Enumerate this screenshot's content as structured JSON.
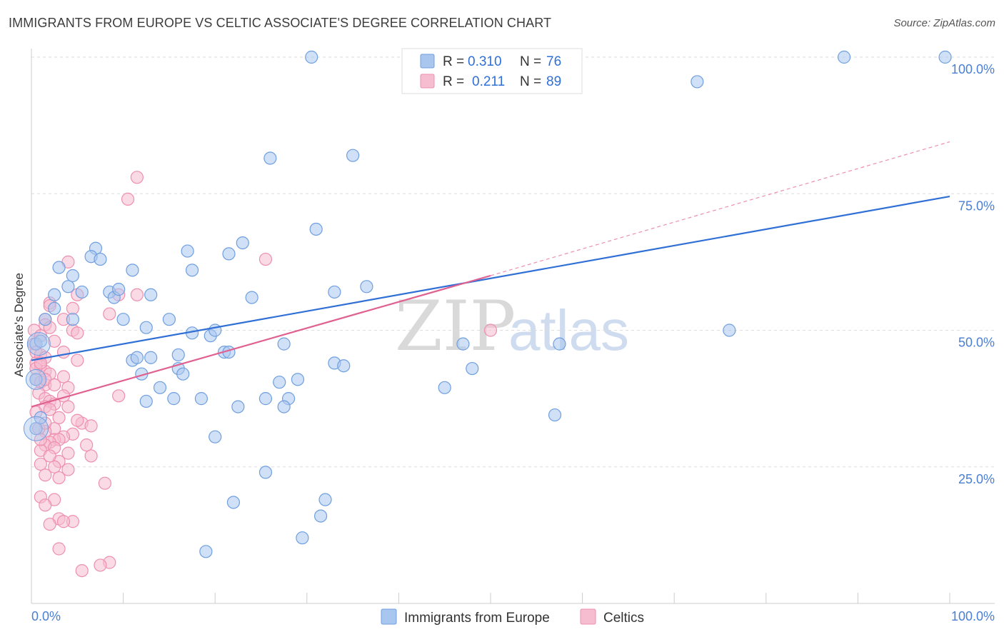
{
  "title": "IMMIGRANTS FROM EUROPE VS CELTIC ASSOCIATE'S DEGREE CORRELATION CHART",
  "source": "Source: ZipAtlas.com",
  "watermark": {
    "zip": "ZIP",
    "atlas": "atlas"
  },
  "colors": {
    "blue_fill": "#a9c6ee",
    "blue_stroke": "#6f9fe0",
    "blue_line": "#2f6fd6",
    "pink_fill": "#f6bcd0",
    "pink_stroke": "#ee8fb0",
    "pink_line": "#e0608f",
    "grid": "#dddddd",
    "axis_text": "#4a7fd4"
  },
  "legend_top": {
    "rows": [
      {
        "series": "blue",
        "r_label": "R =",
        "r_value": "0.310",
        "n_label": "N =",
        "n_value": "76"
      },
      {
        "series": "pink",
        "r_label": "R =",
        "r_value": "0.211",
        "n_label": "N =",
        "n_value": "89"
      }
    ]
  },
  "legend_bottom": [
    "Immigrants from Europe",
    "Celtics"
  ],
  "chart_data": {
    "type": "scatter",
    "title": "IMMIGRANTS FROM EUROPE VS CELTIC ASSOCIATE'S DEGREE CORRELATION CHART",
    "xlabel": "",
    "ylabel": "Associate's Degree",
    "xlim": [
      0,
      100
    ],
    "ylim": [
      0,
      102
    ],
    "x_tick_labels": [
      "0.0%",
      "100.0%"
    ],
    "y_ticks": [
      {
        "value": 25,
        "label": "25.0%"
      },
      {
        "value": 50,
        "label": "50.0%"
      },
      {
        "value": 75,
        "label": "75.0%"
      },
      {
        "value": 100,
        "label": "100.0%"
      }
    ],
    "series": [
      {
        "name": "Immigrants from Europe",
        "color": "blue",
        "R": 0.31,
        "N": 76,
        "trend": {
          "x0": 0,
          "y0": 44.5,
          "x1": 100,
          "y1": 74.5,
          "dashed_to": null
        },
        "points": [
          [
            30.5,
            100
          ],
          [
            88.5,
            100
          ],
          [
            99.5,
            100
          ],
          [
            72.5,
            95.5
          ],
          [
            26,
            81.5
          ],
          [
            35,
            82
          ],
          [
            31,
            68.5
          ],
          [
            23,
            66
          ],
          [
            21.5,
            64
          ],
          [
            17,
            64.5
          ],
          [
            7,
            65
          ],
          [
            6.5,
            63.5
          ],
          [
            7.5,
            63
          ],
          [
            3,
            61.5
          ],
          [
            4.5,
            60
          ],
          [
            11,
            61
          ],
          [
            17.5,
            61
          ],
          [
            36.5,
            58
          ],
          [
            33,
            57
          ],
          [
            4,
            58
          ],
          [
            2.5,
            56.5
          ],
          [
            5.5,
            57
          ],
          [
            8.5,
            57
          ],
          [
            9,
            56
          ],
          [
            9.5,
            57.5
          ],
          [
            13,
            56.5
          ],
          [
            24,
            56
          ],
          [
            2.5,
            54
          ],
          [
            1.5,
            52
          ],
          [
            4.5,
            52
          ],
          [
            10,
            52
          ],
          [
            15,
            52
          ],
          [
            12.5,
            50.5
          ],
          [
            17.5,
            49.5
          ],
          [
            19.5,
            49
          ],
          [
            20,
            50
          ],
          [
            21,
            46
          ],
          [
            21.5,
            46
          ],
          [
            13,
            45
          ],
          [
            16,
            45.5
          ],
          [
            11,
            44.5
          ],
          [
            11.5,
            45
          ],
          [
            12,
            42
          ],
          [
            16,
            43
          ],
          [
            16.5,
            42
          ],
          [
            33,
            44
          ],
          [
            34,
            43.5
          ],
          [
            27.5,
            47.5
          ],
          [
            47,
            47.5
          ],
          [
            57.5,
            47.5
          ],
          [
            76,
            50
          ],
          [
            48,
            43
          ],
          [
            45,
            39.5
          ],
          [
            14,
            39.5
          ],
          [
            12.5,
            37
          ],
          [
            15.5,
            37.5
          ],
          [
            18.5,
            37.5
          ],
          [
            25.5,
            37.5
          ],
          [
            28,
            37.5
          ],
          [
            27,
            40.5
          ],
          [
            29,
            41
          ],
          [
            22.5,
            36
          ],
          [
            27.5,
            36
          ],
          [
            57,
            34.5
          ],
          [
            20,
            30.5
          ],
          [
            25.5,
            24
          ],
          [
            32,
            19
          ],
          [
            22,
            18.5
          ],
          [
            31.5,
            16
          ],
          [
            29.5,
            12
          ],
          [
            19,
            9.5
          ],
          [
            0.5,
            47.5
          ],
          [
            0.5,
            41
          ],
          [
            0.5,
            32
          ],
          [
            1,
            48
          ],
          [
            1,
            34
          ]
        ]
      },
      {
        "name": "Celtics",
        "color": "pink",
        "R": 0.211,
        "N": 89,
        "trend": {
          "x0": 0,
          "y0": 36,
          "x1": 50,
          "y1": 60,
          "dashed_to": {
            "x": 100,
            "y": 84.5
          }
        },
        "points": [
          [
            11.5,
            78
          ],
          [
            10.5,
            74
          ],
          [
            25.5,
            63
          ],
          [
            4,
            62.5
          ],
          [
            5,
            56.5
          ],
          [
            9.5,
            56.5
          ],
          [
            11.5,
            56.5
          ],
          [
            2,
            55
          ],
          [
            2,
            54.5
          ],
          [
            4.5,
            54
          ],
          [
            8.5,
            53
          ],
          [
            1.5,
            52
          ],
          [
            1.5,
            51
          ],
          [
            2,
            50.5
          ],
          [
            4.5,
            50
          ],
          [
            5,
            49.5
          ],
          [
            0.3,
            50
          ],
          [
            0.3,
            47.5
          ],
          [
            0.5,
            46
          ],
          [
            1,
            45.5
          ],
          [
            1.5,
            45
          ],
          [
            0.5,
            44
          ],
          [
            1,
            43.5
          ],
          [
            5,
            44.5
          ],
          [
            1.5,
            42.5
          ],
          [
            2,
            42
          ],
          [
            3.5,
            41.5
          ],
          [
            0.5,
            41
          ],
          [
            1,
            40.5
          ],
          [
            1.5,
            40
          ],
          [
            4,
            39.5
          ],
          [
            0.8,
            38.5
          ],
          [
            3.5,
            38
          ],
          [
            9.5,
            38
          ],
          [
            1.5,
            37.5
          ],
          [
            2,
            37
          ],
          [
            2.5,
            36.5
          ],
          [
            1.5,
            36
          ],
          [
            2,
            35.5
          ],
          [
            0.5,
            35
          ],
          [
            5.5,
            33
          ],
          [
            6.5,
            32.5
          ],
          [
            2.5,
            32
          ],
          [
            1.5,
            31.5
          ],
          [
            4.5,
            31
          ],
          [
            3.5,
            30.5
          ],
          [
            2.5,
            30
          ],
          [
            3,
            30
          ],
          [
            2,
            29.5
          ],
          [
            1.5,
            29
          ],
          [
            2.5,
            28.5
          ],
          [
            1,
            28
          ],
          [
            4,
            27.5
          ],
          [
            6.5,
            27
          ],
          [
            3,
            26
          ],
          [
            1,
            25.5
          ],
          [
            2.5,
            25
          ],
          [
            4,
            24.5
          ],
          [
            1.5,
            23.5
          ],
          [
            3,
            23
          ],
          [
            8,
            22
          ],
          [
            1,
            19.5
          ],
          [
            2.5,
            19
          ],
          [
            1.5,
            18
          ],
          [
            3,
            15.5
          ],
          [
            4.5,
            15
          ],
          [
            3.5,
            15
          ],
          [
            2,
            14.5
          ],
          [
            3,
            10
          ],
          [
            8.5,
            7.5
          ],
          [
            7.5,
            7
          ],
          [
            5.5,
            6
          ],
          [
            1.5,
            41
          ],
          [
            0.5,
            43
          ],
          [
            1,
            44
          ],
          [
            3.5,
            46
          ],
          [
            2.5,
            48
          ],
          [
            1,
            49
          ],
          [
            3.5,
            52
          ],
          [
            0.8,
            32
          ],
          [
            2,
            27
          ],
          [
            5,
            33.5
          ],
          [
            6,
            29
          ],
          [
            3,
            34
          ],
          [
            1.5,
            33
          ],
          [
            4,
            36
          ],
          [
            2.5,
            40
          ],
          [
            50,
            50
          ],
          [
            1,
            30
          ]
        ]
      }
    ]
  }
}
